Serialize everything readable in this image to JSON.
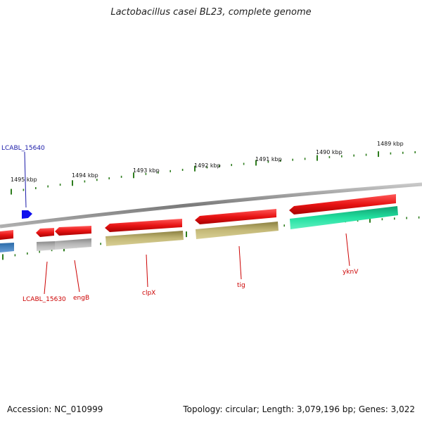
{
  "title": "Lactobacillus casei BL23, complete genome",
  "footer": {
    "accession": "Accession: NC_010999",
    "topology": "Topology: circular; Length: 3,079,196 bp; Genes: 3,022"
  },
  "scale_labels": [
    "1495 kbp",
    "1494 kbp",
    "1493 kbp",
    "1492 kbp",
    "1491 kbp",
    "1490 kbp",
    "1489 kbp"
  ],
  "gene_labels": [
    {
      "text": "LCABL_15640",
      "color": "#1a1aa8"
    },
    {
      "text": "LCABL_15630",
      "color": "#cc0000"
    },
    {
      "text": "engB",
      "color": "#cc0000"
    },
    {
      "text": "clpX",
      "color": "#cc0000"
    },
    {
      "text": "tig",
      "color": "#cc0000"
    },
    {
      "text": "yknV",
      "color": "#cc0000"
    }
  ],
  "colors": {
    "gene_red": "#e81414",
    "cds_olive": "#b8ad6a",
    "cds_gray": "#b0b0b0",
    "cds_teal": "#22d99a",
    "cds_blue": "#3a7fc0",
    "tick_green": "#2e7d1e",
    "backbone": "#808080"
  }
}
